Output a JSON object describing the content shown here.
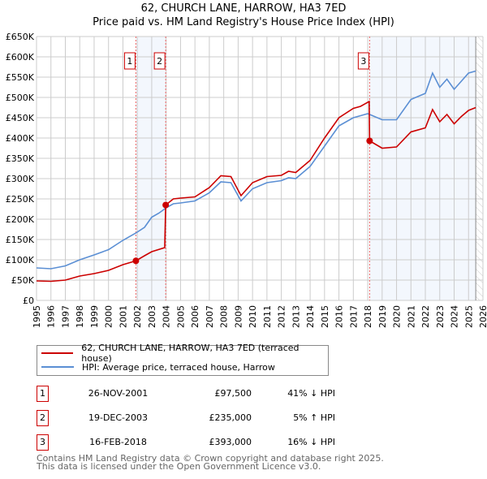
{
  "chart_data": {
    "type": "line",
    "title": "62, CHURCH LANE, HARROW, HA3 7ED",
    "subtitle": "Price paid vs. HM Land Registry's House Price Index (HPI)",
    "xlim": [
      1995,
      2026
    ],
    "ylim": [
      0,
      650000
    ],
    "x_ticks": [
      "1995",
      "1996",
      "1997",
      "1998",
      "1999",
      "2000",
      "2001",
      "2002",
      "2003",
      "2004",
      "2005",
      "2006",
      "2007",
      "2008",
      "2009",
      "2010",
      "2011",
      "2012",
      "2013",
      "2014",
      "2015",
      "2016",
      "2017",
      "2018",
      "2019",
      "2020",
      "2021",
      "2022",
      "2023",
      "2024",
      "2025",
      "2026"
    ],
    "y_ticks": [
      "£0",
      "£50K",
      "£100K",
      "£150K",
      "£200K",
      "£250K",
      "£300K",
      "£350K",
      "£400K",
      "£450K",
      "£500K",
      "£550K",
      "£600K",
      "£650K"
    ],
    "grid": true,
    "series": [
      {
        "name": "62, CHURCH LANE, HARROW, HA3 7ED (terraced house)",
        "color": "#cc0000",
        "points": [
          [
            1995,
            48000
          ],
          [
            1996,
            47000
          ],
          [
            1997,
            50000
          ],
          [
            1998,
            60000
          ],
          [
            1999,
            66000
          ],
          [
            2000,
            74000
          ],
          [
            2001,
            88000
          ],
          [
            2001.9,
            97500
          ],
          [
            2002.5,
            110000
          ],
          [
            2003,
            120000
          ],
          [
            2003.9,
            130000
          ],
          [
            2003.97,
            235000
          ],
          [
            2004.5,
            250000
          ],
          [
            2005,
            252000
          ],
          [
            2006,
            255000
          ],
          [
            2007,
            278000
          ],
          [
            2007.8,
            307000
          ],
          [
            2008.5,
            305000
          ],
          [
            2009.2,
            258000
          ],
          [
            2010,
            290000
          ],
          [
            2011,
            305000
          ],
          [
            2012,
            308000
          ],
          [
            2012.5,
            318000
          ],
          [
            2013,
            315000
          ],
          [
            2014,
            345000
          ],
          [
            2015,
            400000
          ],
          [
            2016,
            450000
          ],
          [
            2017,
            473000
          ],
          [
            2017.5,
            478000
          ],
          [
            2018.1,
            490000
          ],
          [
            2018.13,
            393000
          ],
          [
            2019,
            375000
          ],
          [
            2020,
            378000
          ],
          [
            2021,
            415000
          ],
          [
            2022,
            425000
          ],
          [
            2022.5,
            470000
          ],
          [
            2023,
            440000
          ],
          [
            2023.5,
            458000
          ],
          [
            2024,
            435000
          ],
          [
            2024.5,
            453000
          ],
          [
            2025,
            468000
          ],
          [
            2025.5,
            475000
          ]
        ]
      },
      {
        "name": "HPI: Average price, terraced house, Harrow",
        "color": "#5b8fd4",
        "points": [
          [
            1995,
            80000
          ],
          [
            1996,
            78000
          ],
          [
            1997,
            85000
          ],
          [
            1998,
            100000
          ],
          [
            1999,
            112000
          ],
          [
            2000,
            125000
          ],
          [
            2001,
            148000
          ],
          [
            2001.9,
            166000
          ],
          [
            2002.5,
            180000
          ],
          [
            2003,
            205000
          ],
          [
            2003.5,
            215000
          ],
          [
            2004,
            228000
          ],
          [
            2004.5,
            238000
          ],
          [
            2005,
            240000
          ],
          [
            2006,
            245000
          ],
          [
            2007,
            265000
          ],
          [
            2007.8,
            292000
          ],
          [
            2008.5,
            290000
          ],
          [
            2009.2,
            245000
          ],
          [
            2010,
            275000
          ],
          [
            2011,
            290000
          ],
          [
            2012,
            295000
          ],
          [
            2012.5,
            302000
          ],
          [
            2013,
            300000
          ],
          [
            2014,
            330000
          ],
          [
            2015,
            380000
          ],
          [
            2016,
            430000
          ],
          [
            2017,
            450000
          ],
          [
            2017.5,
            455000
          ],
          [
            2018,
            460000
          ],
          [
            2019,
            445000
          ],
          [
            2020,
            445000
          ],
          [
            2021,
            495000
          ],
          [
            2022,
            510000
          ],
          [
            2022.5,
            560000
          ],
          [
            2023,
            525000
          ],
          [
            2023.5,
            545000
          ],
          [
            2024,
            520000
          ],
          [
            2024.5,
            540000
          ],
          [
            2025,
            560000
          ],
          [
            2025.5,
            565000
          ]
        ]
      }
    ],
    "sales": [
      {
        "label": "1",
        "x": 2001.9,
        "y": 97500,
        "date": "26-NOV-2001",
        "price": "£97,500",
        "hpi": "41% ↓ HPI"
      },
      {
        "label": "2",
        "x": 2003.97,
        "y": 235000,
        "date": "19-DEC-2003",
        "price": "£235,000",
        "hpi": "5% ↑ HPI"
      },
      {
        "label": "3",
        "x": 2018.13,
        "y": 393000,
        "date": "16-FEB-2018",
        "price": "£393,000",
        "hpi": "16% ↓ HPI"
      }
    ],
    "data_end": 2025.5
  },
  "footer": {
    "line1": "Contains HM Land Registry data © Crown copyright and database right 2025.",
    "line2": "This data is licensed under the Open Government Licence v3.0."
  }
}
